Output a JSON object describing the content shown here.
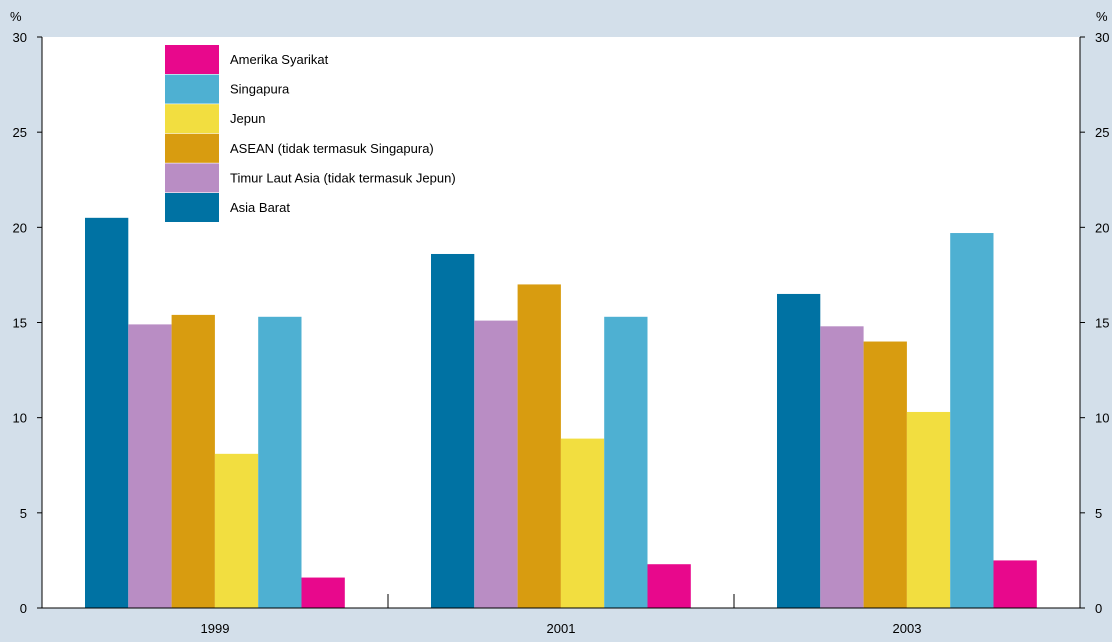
{
  "chart_data": {
    "type": "bar",
    "categories": [
      "1999",
      "2001",
      "2003"
    ],
    "ylabel_left": "%",
    "ylabel_right": "%",
    "ylim": [
      0,
      30
    ],
    "yticks": [
      0,
      5,
      10,
      15,
      20,
      25,
      30
    ],
    "grid": false,
    "legend_position": "top-left",
    "series": [
      {
        "name": "Asia Barat",
        "color": "#0072a3",
        "values": [
          20.5,
          18.6,
          16.5
        ]
      },
      {
        "name": "Timur Laut Asia (tidak termasuk Jepun)",
        "color": "#b98dc4",
        "values": [
          14.9,
          15.1,
          14.8
        ]
      },
      {
        "name": "ASEAN (tidak termasuk Singapura)",
        "color": "#d89c10",
        "values": [
          15.4,
          17.0,
          14.0
        ]
      },
      {
        "name": "Jepun",
        "color": "#f2de40",
        "values": [
          8.1,
          8.9,
          10.3
        ]
      },
      {
        "name": "Singapura",
        "color": "#4eb0d2",
        "values": [
          15.3,
          15.3,
          19.7
        ]
      },
      {
        "name": "Amerika Syarikat",
        "color": "#e8088c",
        "values": [
          1.6,
          2.3,
          2.5
        ]
      }
    ],
    "legend_order": [
      "Amerika Syarikat",
      "Singapura",
      "Jepun",
      "ASEAN (tidak termasuk Singapura)",
      "Timur Laut Asia (tidak termasuk Jepun)",
      "Asia Barat"
    ]
  }
}
